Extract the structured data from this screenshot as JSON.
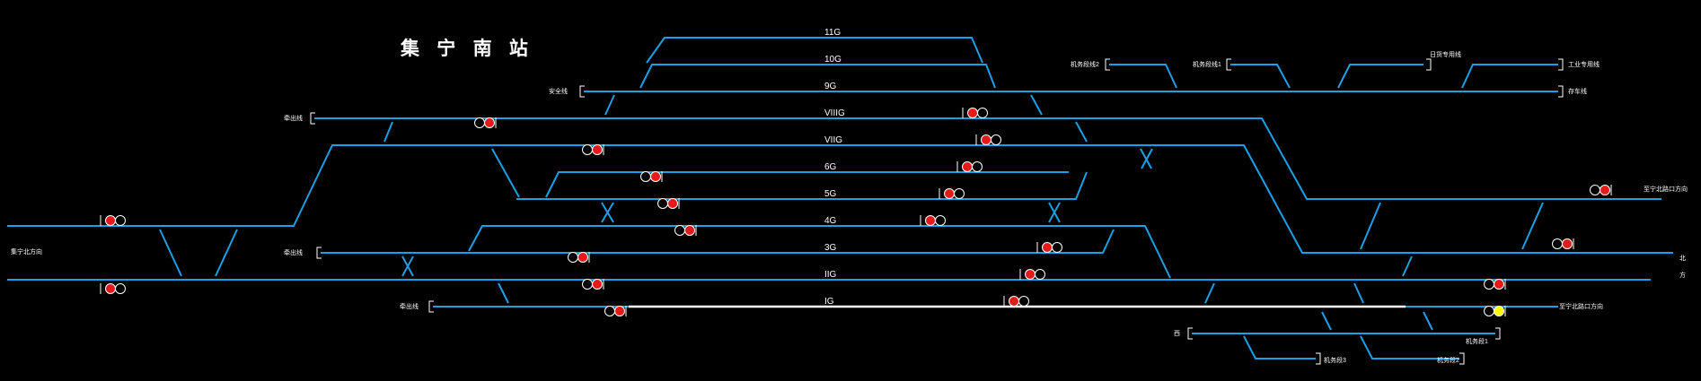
{
  "station": {
    "name": "集 宁 南 站"
  },
  "colors": {
    "track": "#1aa0e8",
    "route": "#ffffff",
    "signal_red": "#e51a1a",
    "signal_yellow": "#ffff00",
    "signal_lamp_off": "#000000",
    "text": "#ffffff"
  },
  "tracks": {
    "t11G": "11G",
    "t10G": "10G",
    "t9G": "9G",
    "tVIIIG": "VIIIG",
    "tVIIG": "VIIG",
    "t6G": "6G",
    "t5G": "5G",
    "t4G": "4G",
    "t3G": "3G",
    "tIIG": "IIG",
    "tIG": "IG"
  },
  "sidings": {
    "safety_top": "安全线",
    "traction_left_top": "牵出线",
    "jiaoning_left": "集宁北方向",
    "traction_left_mid": "牵出线",
    "traction_left_bottom": "牵出线",
    "engine_line2": "机务段线2",
    "engine_line1": "机务段线1",
    "special_line_top": "日货专用线",
    "industrial_line": "工业专用线",
    "storage_line": "存车线",
    "jiningnan_east_top": "至宁北路口方向",
    "far_right_top": "北",
    "far_right_bottom": "方",
    "jining_south_bottom": "至宁北路口方向",
    "bottom_left_stub": "西",
    "engine_bottom1": "机务段1",
    "engine_bottom2": "机务段2",
    "engine_bottom3": "机务段3"
  }
}
